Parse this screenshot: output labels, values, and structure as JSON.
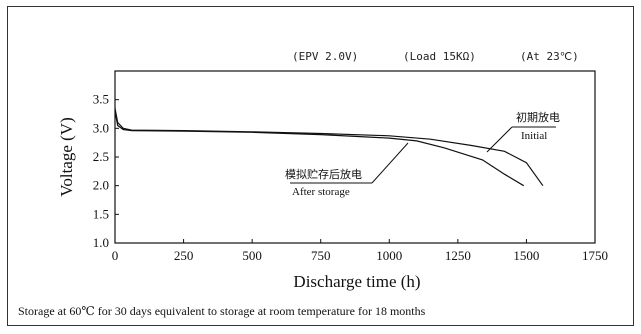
{
  "conditions": {
    "epv": "(EPV 2.0V)",
    "load": "(Load 15KΩ)",
    "temp": "(At 23℃)"
  },
  "caption": "Storage at 60℃ for 30 days equivalent to storage at room temperature for 18 months",
  "chart_data": {
    "type": "line",
    "xlabel": "Discharge time (h)",
    "ylabel": "Voltage (V)",
    "xlim": [
      0,
      1750
    ],
    "ylim": [
      1.0,
      4.0
    ],
    "x_ticks": [
      0,
      250,
      500,
      750,
      1000,
      1250,
      1500,
      1750
    ],
    "x_tick_labels": [
      "0",
      "250",
      "500",
      "750",
      "1000",
      "1250",
      "1500",
      "1750"
    ],
    "y_ticks": [
      1.0,
      1.5,
      2.0,
      2.5,
      3.0,
      3.5
    ],
    "y_tick_labels": [
      "1.0",
      "1.5",
      "2.0",
      "2.5",
      "3.0",
      "3.5"
    ],
    "grid": false,
    "series": [
      {
        "name": "Initial",
        "name_cn": "初期放电",
        "color": "#111111",
        "x": [
          0,
          10,
          30,
          60,
          250,
          500,
          750,
          1000,
          1150,
          1300,
          1420,
          1500,
          1560
        ],
        "y": [
          3.35,
          3.1,
          3.0,
          2.97,
          2.96,
          2.94,
          2.91,
          2.87,
          2.81,
          2.7,
          2.6,
          2.4,
          2.0
        ]
      },
      {
        "name": "After storage",
        "name_cn": "模拟贮存后放电",
        "color": "#111111",
        "x": [
          0,
          10,
          30,
          60,
          250,
          500,
          750,
          1000,
          1100,
          1200,
          1340,
          1420,
          1490
        ],
        "y": [
          3.3,
          3.05,
          2.98,
          2.96,
          2.95,
          2.93,
          2.89,
          2.83,
          2.78,
          2.66,
          2.45,
          2.2,
          2.0
        ]
      }
    ]
  }
}
